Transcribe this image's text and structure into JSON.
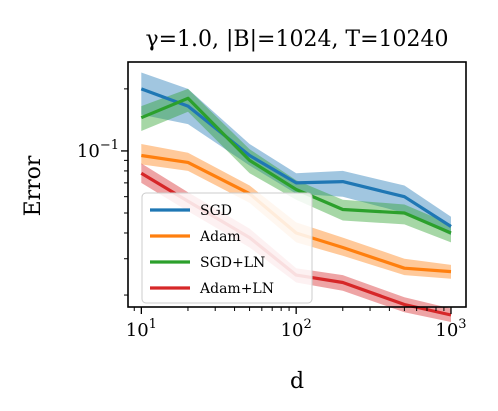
{
  "chart_data": {
    "type": "line",
    "title": "γ=1.0, |B|=1024, T=10240",
    "xlabel": "d",
    "ylabel": "Error",
    "xscale": "log",
    "yscale": "log",
    "xlim": [
      8.2,
      1250
    ],
    "ylim": [
      0.0175,
      0.27
    ],
    "xticks": [
      {
        "value": 10,
        "base": "10",
        "exp": "1"
      },
      {
        "value": 100,
        "base": "10",
        "exp": "2"
      },
      {
        "value": 1000,
        "base": "10",
        "exp": "3"
      }
    ],
    "yticks": [
      {
        "value": 0.1,
        "base": "10",
        "exp": "−1"
      }
    ],
    "grid": false,
    "legend_position": "lower-left",
    "x": [
      10,
      20,
      50,
      100,
      200,
      500,
      1000
    ],
    "series": [
      {
        "name": "SGD",
        "color": "#1f77b4",
        "values": [
          0.2,
          0.165,
          0.095,
          0.07,
          0.071,
          0.06,
          0.043
        ],
        "lower": [
          0.15,
          0.135,
          0.085,
          0.062,
          0.06,
          0.05,
          0.039
        ],
        "upper": [
          0.24,
          0.2,
          0.108,
          0.078,
          0.08,
          0.068,
          0.048
        ]
      },
      {
        "name": "Adam",
        "color": "#ff7f0e",
        "values": [
          0.095,
          0.088,
          0.062,
          0.04,
          0.034,
          0.027,
          0.026
        ],
        "lower": [
          0.086,
          0.08,
          0.056,
          0.036,
          0.031,
          0.025,
          0.024
        ],
        "upper": [
          0.108,
          0.098,
          0.068,
          0.045,
          0.038,
          0.03,
          0.028
        ]
      },
      {
        "name": "SGD+LN",
        "color": "#2ca02c",
        "values": [
          0.145,
          0.18,
          0.09,
          0.065,
          0.052,
          0.05,
          0.04
        ],
        "lower": [
          0.125,
          0.155,
          0.078,
          0.058,
          0.046,
          0.044,
          0.036
        ],
        "upper": [
          0.165,
          0.2,
          0.102,
          0.072,
          0.058,
          0.055,
          0.044
        ]
      },
      {
        "name": "Adam+LN",
        "color": "#d62728",
        "values": [
          0.078,
          0.057,
          0.038,
          0.025,
          0.023,
          0.018,
          0.016
        ],
        "lower": [
          0.07,
          0.051,
          0.034,
          0.023,
          0.021,
          0.0165,
          0.0148
        ],
        "upper": [
          0.087,
          0.063,
          0.042,
          0.027,
          0.025,
          0.0195,
          0.0172
        ]
      }
    ]
  }
}
